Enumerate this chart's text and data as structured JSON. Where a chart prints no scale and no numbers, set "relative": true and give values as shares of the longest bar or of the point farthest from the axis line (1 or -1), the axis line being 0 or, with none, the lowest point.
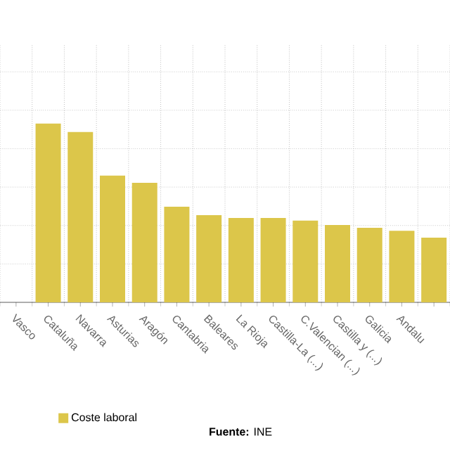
{
  "chart_data": {
    "type": "bar",
    "relative": true,
    "categories": [
      "Vasco",
      "Cataluña",
      "Navarra",
      "Asturias",
      "Aragón",
      "Cantabria",
      "Baleares",
      "La Rioja",
      "Castilla-La (...)",
      "C.Valencian (...)",
      "Castilla y (...)",
      "Galicia",
      "Andalu",
      null
    ],
    "series": [
      {
        "name": "Coste laboral",
        "color": "#dcc64a",
        "values": [
          null,
          1.0,
          0.953,
          0.709,
          0.669,
          0.535,
          0.488,
          0.472,
          0.472,
          0.457,
          0.433,
          0.417,
          0.4,
          0.362
        ]
      }
    ],
    "grid": true,
    "legend": "bottom",
    "annotations": [
      "**Fuente:** INE"
    ]
  }
}
